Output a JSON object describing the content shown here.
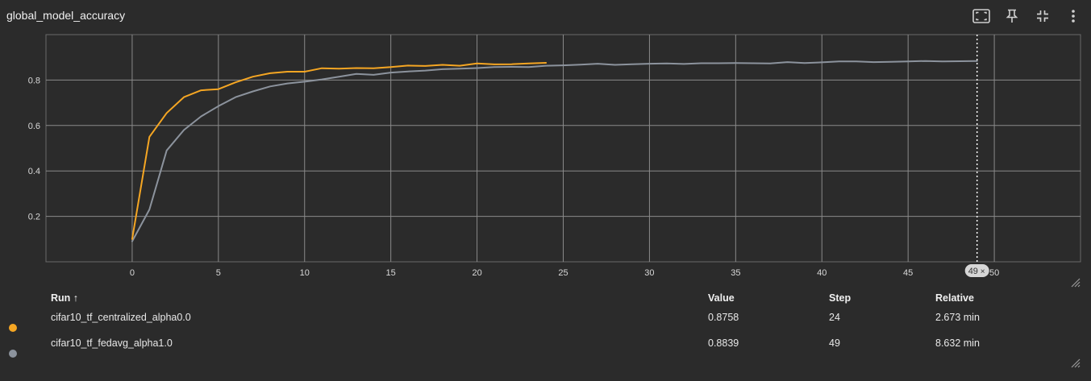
{
  "card": {
    "title": "global_model_accuracy"
  },
  "toolbar": {
    "icons": [
      "fit-to-data-icon",
      "pin-icon",
      "collapse-icon",
      "more-vert-icon"
    ]
  },
  "chart_data": {
    "type": "line",
    "title": "global_model_accuracy",
    "xlabel": "",
    "ylabel": "",
    "xlim": [
      -5,
      55
    ],
    "ylim": [
      0,
      1.0
    ],
    "x_ticks": [
      0,
      5,
      10,
      15,
      20,
      25,
      30,
      35,
      40,
      45,
      50
    ],
    "y_ticks": [
      0.2,
      0.4,
      0.6,
      0.8
    ],
    "y_tick_labels": [
      "0.2",
      "0.4",
      "0.6",
      "0.8"
    ],
    "grid": true,
    "hover_step": 49,
    "hover_label": "49",
    "series": [
      {
        "name": "cifar10_tf_centralized_alpha0.0",
        "color": "#f5a623",
        "x": [
          0,
          1,
          2,
          3,
          4,
          5,
          6,
          7,
          8,
          9,
          10,
          11,
          12,
          13,
          14,
          15,
          16,
          17,
          18,
          19,
          20,
          21,
          22,
          23,
          24
        ],
        "y": [
          0.1,
          0.55,
          0.655,
          0.725,
          0.755,
          0.76,
          0.79,
          0.815,
          0.83,
          0.837,
          0.837,
          0.852,
          0.85,
          0.853,
          0.852,
          0.857,
          0.864,
          0.862,
          0.867,
          0.863,
          0.873,
          0.869,
          0.87,
          0.873,
          0.8758
        ]
      },
      {
        "name": "cifar10_tf_fedavg_alpha1.0",
        "color": "#8c939d",
        "x": [
          0,
          1,
          2,
          3,
          4,
          5,
          6,
          7,
          8,
          9,
          10,
          11,
          12,
          13,
          14,
          15,
          16,
          17,
          18,
          19,
          20,
          21,
          22,
          23,
          24,
          25,
          26,
          27,
          28,
          29,
          30,
          31,
          32,
          33,
          34,
          35,
          36,
          37,
          38,
          39,
          40,
          41,
          42,
          43,
          44,
          45,
          46,
          47,
          48,
          49
        ],
        "y": [
          0.09,
          0.23,
          0.49,
          0.58,
          0.64,
          0.685,
          0.725,
          0.75,
          0.772,
          0.785,
          0.793,
          0.803,
          0.815,
          0.827,
          0.823,
          0.833,
          0.838,
          0.842,
          0.848,
          0.85,
          0.853,
          0.857,
          0.858,
          0.857,
          0.863,
          0.865,
          0.868,
          0.872,
          0.867,
          0.87,
          0.872,
          0.873,
          0.871,
          0.874,
          0.874,
          0.875,
          0.874,
          0.873,
          0.879,
          0.875,
          0.878,
          0.882,
          0.882,
          0.879,
          0.88,
          0.882,
          0.884,
          0.882,
          0.883,
          0.8839
        ]
      }
    ]
  },
  "table": {
    "headers": {
      "run": "Run ↑",
      "value": "Value",
      "step": "Step",
      "relative": "Relative"
    },
    "rows": [
      {
        "run": "cifar10_tf_centralized_alpha0.0",
        "value": "0.8758",
        "step": "24",
        "relative": "2.673 min",
        "color": "#f5a623"
      },
      {
        "run": "cifar10_tf_fedavg_alpha1.0",
        "value": "0.8839",
        "step": "49",
        "relative": "8.632 min",
        "color": "#8c939d"
      }
    ]
  }
}
